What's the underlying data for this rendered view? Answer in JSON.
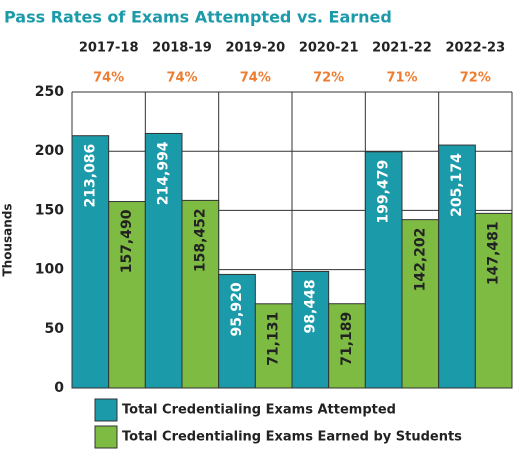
{
  "chart_data": {
    "type": "bar",
    "title": "Pass Rates of Exams Attempted vs. Earned",
    "y_label": "Thousands",
    "categories": [
      "2017-18",
      "2018-19",
      "2019-20",
      "2020-21",
      "2021-22",
      "2022-23"
    ],
    "pass_rates": [
      "74%",
      "74%",
      "74%",
      "72%",
      "71%",
      "72%"
    ],
    "series": [
      {
        "name": "Total Credentialing Exams Attempted",
        "color": "#1b9aaa",
        "values": [
          213.086,
          214.994,
          95.92,
          98.448,
          199.479,
          205.174
        ],
        "value_labels": [
          "213,086",
          "214,994",
          "95,920",
          "98,448",
          "199,479",
          "205,174"
        ]
      },
      {
        "name": "Total Credentialing Exams Earned by Students",
        "color": "#7dbb42",
        "values": [
          157.49,
          158.452,
          71.131,
          71.189,
          142.202,
          147.481
        ],
        "value_labels": [
          "157,490",
          "158,452",
          "71,131",
          "71,189",
          "142,202",
          "147,481"
        ]
      }
    ],
    "ylim": [
      0,
      250
    ],
    "yticks": [
      0,
      50,
      100,
      150,
      200,
      250
    ],
    "grid": true
  }
}
